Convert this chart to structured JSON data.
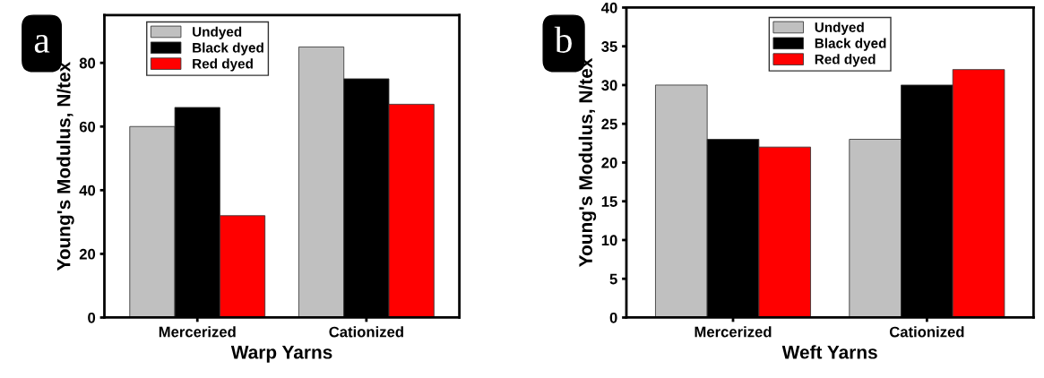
{
  "chart_data": [
    {
      "type": "bar",
      "title": "a",
      "xlabel": "Warp Yarns",
      "ylabel": "Young's Modulus, N/tex",
      "categories": [
        "Mercerized",
        "Cationized"
      ],
      "ylim": [
        0,
        95
      ],
      "yticks": [
        0,
        20,
        40,
        60,
        80
      ],
      "legend": "top left",
      "grid": false,
      "series": [
        {
          "name": "Undyed",
          "color": "#c0c0c0",
          "values": [
            60,
            85
          ]
        },
        {
          "name": "Black dyed",
          "color": "#000000",
          "values": [
            66,
            75
          ]
        },
        {
          "name": "Red dyed",
          "color": "#ff0000",
          "values": [
            32,
            67
          ]
        }
      ]
    },
    {
      "type": "bar",
      "title": "b",
      "xlabel": "Weft Yarns",
      "ylabel": "Young's Modulus, N/tex",
      "categories": [
        "Mercerized",
        "Cationized"
      ],
      "ylim": [
        0,
        40
      ],
      "yticks": [
        0,
        5,
        10,
        15,
        20,
        25,
        30,
        35,
        40
      ],
      "legend": "top",
      "grid": false,
      "series": [
        {
          "name": "Undyed",
          "color": "#c0c0c0",
          "values": [
            30,
            23
          ]
        },
        {
          "name": "Black dyed",
          "color": "#000000",
          "values": [
            23,
            30
          ]
        },
        {
          "name": "Red dyed",
          "color": "#ff0000",
          "values": [
            22,
            32
          ]
        }
      ]
    }
  ]
}
